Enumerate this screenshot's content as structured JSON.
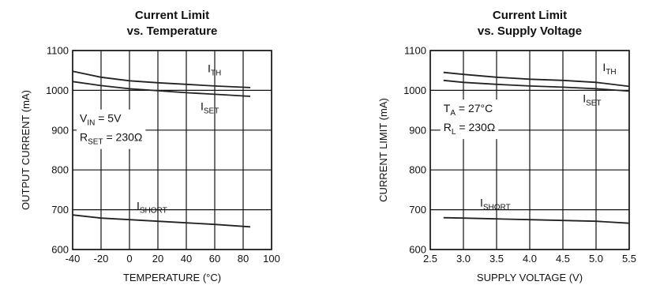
{
  "chart_data": [
    {
      "type": "line",
      "title": "Current Limit",
      "subtitle": "vs. Temperature",
      "xlabel": "TEMPERATURE (°C)",
      "ylabel": "OUTPUT CURRENT (mA)",
      "xlim": [
        -40,
        100
      ],
      "ylim": [
        600,
        1100
      ],
      "x_ticks": [
        -40,
        -20,
        0,
        20,
        40,
        60,
        80,
        100
      ],
      "y_ticks": [
        600,
        700,
        800,
        900,
        1000,
        1100
      ],
      "x_tick_labels": [
        "-40",
        "-20",
        "0",
        "20",
        "40",
        "60",
        "80",
        "100"
      ],
      "y_tick_labels": [
        "600",
        "700",
        "800",
        "900",
        "1000",
        "1100"
      ],
      "grid": true,
      "series": [
        {
          "name": "TH",
          "x": [
            -40,
            -20,
            0,
            20,
            40,
            60,
            85
          ],
          "y": [
            1048,
            1033,
            1024,
            1019,
            1015,
            1011,
            1007
          ]
        },
        {
          "name": "SET",
          "x": [
            -40,
            -20,
            0,
            20,
            40,
            60,
            85
          ],
          "y": [
            1022,
            1012,
            1004,
            999,
            994,
            990,
            985
          ]
        },
        {
          "name": "SHORT",
          "x": [
            -40,
            -20,
            0,
            20,
            40,
            60,
            85
          ],
          "y": [
            687,
            679,
            675,
            671,
            667,
            663,
            657
          ]
        }
      ],
      "annotations": [
        {
          "main": "I",
          "sub": "TH",
          "x": 55,
          "y": 1045
        },
        {
          "main": "I",
          "sub": "SET",
          "x": 50,
          "y": 950
        },
        {
          "main": "I",
          "sub": "SHORT",
          "x": 5,
          "y": 700
        },
        {
          "lines": [
            [
              {
                "t": "V"
              },
              {
                "t": "IN",
                "sub": true
              },
              {
                "t": " = 5V"
              }
            ],
            [
              {
                "t": "R"
              },
              {
                "t": "SET",
                "sub": true
              },
              {
                "t": " = 230Ω"
              }
            ]
          ],
          "x": -35,
          "y": 920
        }
      ]
    },
    {
      "type": "line",
      "title": "Current Limit",
      "subtitle": "vs. Supply Voltage",
      "xlabel": "SUPPLY VOLTAGE (V)",
      "ylabel": "CURRENT LIMIT (mA)",
      "xlim": [
        2.5,
        5.5
      ],
      "ylim": [
        600,
        1100
      ],
      "x_ticks": [
        2.5,
        3.0,
        3.5,
        4.0,
        4.5,
        5.0,
        5.5
      ],
      "y_ticks": [
        600,
        700,
        800,
        900,
        1000,
        1100
      ],
      "x_tick_labels": [
        "2.5",
        "3.0",
        "3.5",
        "4.0",
        "4.5",
        "5.0",
        "5.5"
      ],
      "y_tick_labels": [
        "600",
        "700",
        "800",
        "900",
        "1000",
        "1100"
      ],
      "grid": true,
      "series": [
        {
          "name": "TH",
          "x": [
            2.7,
            3.0,
            3.5,
            4.0,
            4.5,
            5.0,
            5.5
          ],
          "y": [
            1045,
            1040,
            1033,
            1028,
            1025,
            1020,
            1010
          ]
        },
        {
          "name": "SET",
          "x": [
            2.7,
            3.0,
            3.5,
            4.0,
            4.5,
            5.0,
            5.5
          ],
          "y": [
            1025,
            1020,
            1015,
            1011,
            1008,
            1004,
            998
          ]
        },
        {
          "name": "SHORT",
          "x": [
            2.7,
            3.0,
            3.5,
            4.0,
            4.5,
            5.0,
            5.5
          ],
          "y": [
            680,
            679,
            677,
            675,
            673,
            671,
            666
          ]
        }
      ],
      "annotations": [
        {
          "main": "I",
          "sub": "TH",
          "x": 5.1,
          "y": 1048
        },
        {
          "main": "I",
          "sub": "SET",
          "x": 4.8,
          "y": 970
        },
        {
          "main": "I",
          "sub": "SHORT",
          "x": 3.25,
          "y": 708
        },
        {
          "lines": [
            [
              {
                "t": "T"
              },
              {
                "t": "A",
                "sub": true
              },
              {
                "t": " = 27°C"
              }
            ],
            [
              {
                "t": "R"
              },
              {
                "t": "L",
                "sub": true
              },
              {
                "t": " = 230Ω"
              }
            ]
          ],
          "x": 2.7,
          "y": 945
        }
      ]
    }
  ]
}
